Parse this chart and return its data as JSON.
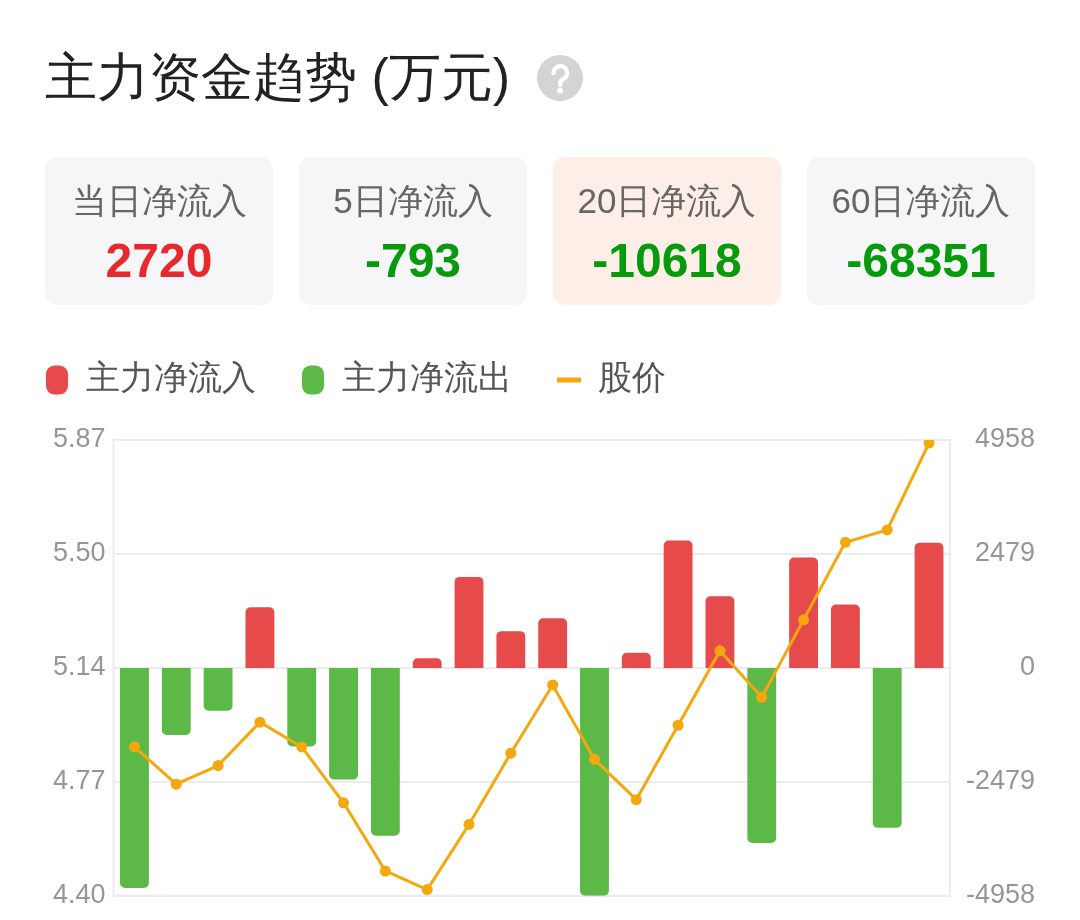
{
  "chart_data": [
    {
      "type": "other",
      "title": "主力资金趋势 (万元)",
      "categories": [
        "当日净流入",
        "5日净流入",
        "20日净流入",
        "60日净流入"
      ],
      "values": [
        2720,
        -793,
        -10618,
        -68351
      ],
      "colors": [
        "#f6f6f8",
        "#f6f6f8",
        "#fdeee7",
        "#f6f6f8"
      ],
      "data_labels": true
    },
    {
      "type": "bar",
      "categories": [
        null,
        null,
        null,
        null,
        null,
        null,
        null,
        null,
        null,
        null,
        null,
        null,
        null,
        null,
        null,
        null,
        null,
        null,
        null,
        null
      ],
      "series": [
        {
          "name": "主力净流入",
          "color": "#e64a4b",
          "axis": "y2",
          "values": [
            null,
            null,
            null,
            1320,
            null,
            null,
            null,
            210,
            1980,
            800,
            1080,
            null,
            330,
            2770,
            1560,
            null,
            2400,
            1380,
            null,
            2720
          ]
        },
        {
          "name": "主力净流出",
          "color": "#5cb947",
          "axis": "y2",
          "values": [
            -4790,
            -1460,
            -930,
            null,
            -1710,
            -2430,
            -3650,
            null,
            null,
            null,
            null,
            -4958,
            null,
            null,
            null,
            -3810,
            null,
            null,
            -3480,
            null
          ]
        },
        {
          "name": "股价",
          "type": "line",
          "color": "#f4a80e",
          "values": [
            4.88,
            4.76,
            4.82,
            4.96,
            4.88,
            4.7,
            4.48,
            4.42,
            4.63,
            4.86,
            5.08,
            4.84,
            4.71,
            4.95,
            5.19,
            5.04,
            5.29,
            5.54,
            5.58,
            5.86
          ]
        }
      ],
      "ylim": [
        4.4,
        5.87
      ],
      "yticks": [
        {
          "value": 4.4,
          "label": "4.40"
        },
        {
          "value": 4.7675,
          "label": "4.77"
        },
        {
          "value": 5.135,
          "label": "5.14"
        },
        {
          "value": 5.5025,
          "label": "5.50"
        },
        5.87
      ],
      "y2lim": [
        -4958,
        4958
      ],
      "y2ticks": [
        -4958,
        -2479,
        0,
        2479,
        4958
      ],
      "grid": "y",
      "legend": "top left",
      "marker": "circle"
    }
  ]
}
